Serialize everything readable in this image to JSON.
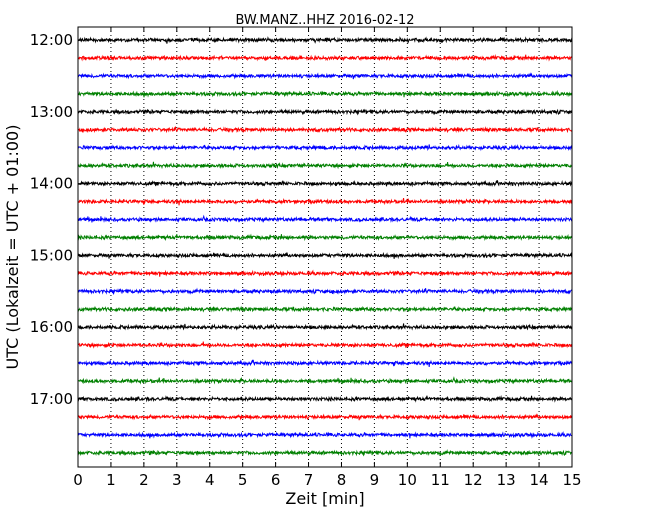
{
  "chart_data": {
    "type": "line",
    "title": "BW.MANZ..HHZ 2016-02-12",
    "xlabel": "Zeit  [min]",
    "ylabel": "UTC (Lokalzeit = UTC + 01:00)",
    "xlim": [
      0,
      15
    ],
    "x_ticks": [
      "0",
      "1",
      "2",
      "3",
      "4",
      "5",
      "6",
      "7",
      "8",
      "9",
      "10",
      "11",
      "12",
      "13",
      "14",
      "15"
    ],
    "y_tick_labels": [
      "12:00",
      "13:00",
      "14:00",
      "15:00",
      "16:00",
      "17:00"
    ],
    "grid": "vertical dotted at each minute",
    "legend": "none",
    "trace_colors": [
      "#000000",
      "#ff0000",
      "#0000ff",
      "#008000"
    ],
    "traces": [
      {
        "start": "12:00"
      },
      {
        "start": "12:15"
      },
      {
        "start": "12:30"
      },
      {
        "start": "12:45"
      },
      {
        "start": "13:00"
      },
      {
        "start": "13:15"
      },
      {
        "start": "13:30"
      },
      {
        "start": "13:45"
      },
      {
        "start": "14:00"
      },
      {
        "start": "14:15"
      },
      {
        "start": "14:30"
      },
      {
        "start": "14:45"
      },
      {
        "start": "15:00"
      },
      {
        "start": "15:15"
      },
      {
        "start": "15:30"
      },
      {
        "start": "15:45"
      },
      {
        "start": "16:00"
      },
      {
        "start": "16:15"
      },
      {
        "start": "16:30"
      },
      {
        "start": "16:45"
      },
      {
        "start": "17:00"
      },
      {
        "start": "17:15"
      },
      {
        "start": "17:30"
      },
      {
        "start": "17:45"
      }
    ]
  }
}
